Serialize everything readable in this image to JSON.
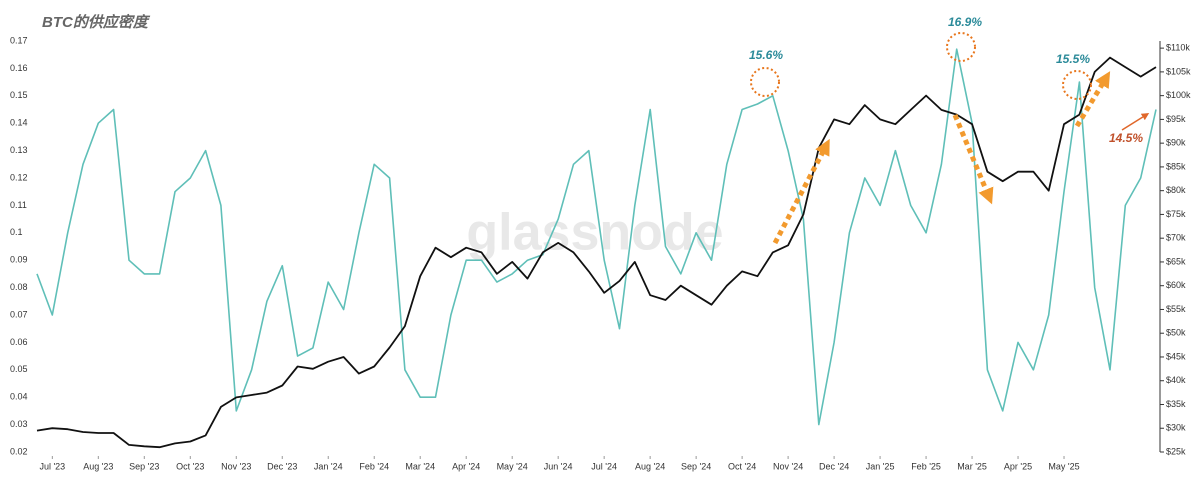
{
  "chart_data": {
    "type": "line",
    "title": "BTC的供应密度",
    "watermark": "glassnode",
    "annotations": [
      "15.6%",
      "16.9%",
      "15.5%",
      "14.5%"
    ],
    "xlim": [
      0,
      73
    ],
    "xticks": [
      {
        "value": 1,
        "label": "Jul '23"
      },
      {
        "value": 4,
        "label": "Aug '23"
      },
      {
        "value": 7,
        "label": "Sep '23"
      },
      {
        "value": 10,
        "label": "Oct '23"
      },
      {
        "value": 13,
        "label": "Nov '23"
      },
      {
        "value": 16,
        "label": "Dec '23"
      },
      {
        "value": 19,
        "label": "Jan '24"
      },
      {
        "value": 22,
        "label": "Feb '24"
      },
      {
        "value": 25,
        "label": "Mar '24"
      },
      {
        "value": 28,
        "label": "Apr '24"
      },
      {
        "value": 31,
        "label": "May '24"
      },
      {
        "value": 34,
        "label": "Jun '24"
      },
      {
        "value": 37,
        "label": "Jul '24"
      },
      {
        "value": 40,
        "label": "Aug '24"
      },
      {
        "value": 43,
        "label": "Sep '24"
      },
      {
        "value": 46,
        "label": "Oct '24"
      },
      {
        "value": 49,
        "label": "Nov '24"
      },
      {
        "value": 52,
        "label": "Dec '24"
      },
      {
        "value": 55,
        "label": "Jan '25"
      },
      {
        "value": 58,
        "label": "Feb '25"
      },
      {
        "value": 61,
        "label": "Mar '25"
      },
      {
        "value": 64,
        "label": "Apr '25"
      },
      {
        "value": 67,
        "label": "May '25"
      }
    ],
    "ylim": [
      0.02,
      0.17
    ],
    "yticks": [
      0.02,
      0.03,
      0.04,
      0.05,
      0.06,
      0.07,
      0.08,
      0.09,
      0.1,
      0.11,
      0.12,
      0.13,
      0.14,
      0.15,
      0.16,
      0.17
    ],
    "y2lim": [
      25000,
      111500
    ],
    "y2ticks": [
      {
        "value": 25000,
        "label": "$25k"
      },
      {
        "value": 30000,
        "label": "$30k"
      },
      {
        "value": 35000,
        "label": "$35k"
      },
      {
        "value": 40000,
        "label": "$40k"
      },
      {
        "value": 45000,
        "label": "$45k"
      },
      {
        "value": 50000,
        "label": "$50k"
      },
      {
        "value": 55000,
        "label": "$55k"
      },
      {
        "value": 60000,
        "label": "$60k"
      },
      {
        "value": 65000,
        "label": "$65k"
      },
      {
        "value": 70000,
        "label": "$70k"
      },
      {
        "value": 75000,
        "label": "$75k"
      },
      {
        "value": 80000,
        "label": "$80k"
      },
      {
        "value": 85000,
        "label": "$85k"
      },
      {
        "value": 90000,
        "label": "$90k"
      },
      {
        "value": 95000,
        "label": "$95k"
      },
      {
        "value": 100000,
        "label": "$100k"
      },
      {
        "value": 105000,
        "label": "$105k"
      },
      {
        "value": 110000,
        "label": "$110k"
      }
    ],
    "series": [
      {
        "color": "#5fbfb8",
        "axis": "y",
        "values": [
          0.085,
          0.07,
          0.1,
          0.125,
          0.14,
          0.145,
          0.09,
          0.085,
          0.085,
          0.115,
          0.12,
          0.13,
          0.11,
          0.035,
          0.05,
          0.075,
          0.088,
          0.055,
          0.058,
          0.082,
          0.072,
          0.1,
          0.125,
          0.12,
          0.05,
          0.04,
          0.04,
          0.07,
          0.09,
          0.09,
          0.082,
          0.085,
          0.09,
          0.092,
          0.105,
          0.125,
          0.13,
          0.09,
          0.065,
          0.11,
          0.145,
          0.095,
          0.085,
          0.1,
          0.09,
          0.125,
          0.145,
          0.147,
          0.15,
          0.13,
          0.105,
          0.03,
          0.06,
          0.1,
          0.12,
          0.11,
          0.13,
          0.11,
          0.1,
          0.125,
          0.167,
          0.14,
          0.05,
          0.035,
          0.06,
          0.05,
          0.07,
          0.115,
          0.155,
          0.08,
          0.05,
          0.11,
          0.12,
          0.145
        ]
      },
      {
        "color": "#111111",
        "axis": "y2",
        "values": [
          29500,
          30000,
          29800,
          29200,
          29000,
          29000,
          26500,
          26200,
          26000,
          26800,
          27200,
          28500,
          34500,
          36500,
          37000,
          37500,
          39000,
          43000,
          42500,
          44000,
          45000,
          41500,
          43000,
          47000,
          51500,
          62000,
          68000,
          66000,
          68000,
          67000,
          62500,
          65000,
          61500,
          67000,
          69000,
          67000,
          63000,
          58500,
          61000,
          65000,
          58000,
          57000,
          60000,
          58000,
          56000,
          60000,
          63000,
          62000,
          67000,
          68500,
          75000,
          89000,
          95000,
          94000,
          98000,
          95000,
          94000,
          97000,
          100000,
          97000,
          96000,
          94000,
          84000,
          82000,
          84000,
          84000,
          80000,
          94000,
          96000,
          105000,
          108000,
          106000,
          104000,
          106000
        ]
      }
    ]
  }
}
